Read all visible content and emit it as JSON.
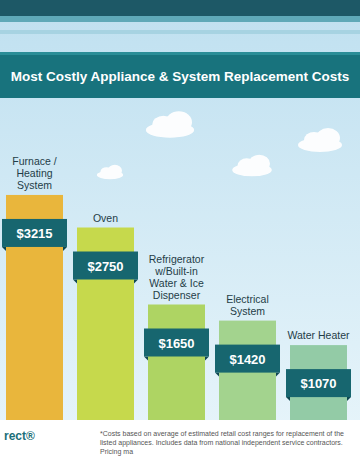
{
  "chart_data": {
    "type": "bar",
    "title": "Most Costly Appliance & System Replacement Costs",
    "categories": [
      "Furnace / Heating System",
      "Oven",
      "Refrigerator w/Built-in Water & Ice Dispenser",
      "Electrical System",
      "Water Heater"
    ],
    "values": [
      3215,
      2750,
      1650,
      1420,
      1070
    ],
    "value_labels": [
      "$3215",
      "$2750",
      "$1650",
      "$1420",
      "$1070"
    ],
    "colors": [
      "#e9b63c",
      "#c6d94c",
      "#aed463",
      "#a3d38e",
      "#93cba6"
    ],
    "ylim": [
      0,
      3400
    ],
    "grid": false,
    "tick_labels": false,
    "data_labels": true,
    "footnote": "*Costs based on average of estimated retail cost ranges for replacement of the listed appliances. Includes data from national independent service contractors. Pricing ma",
    "source": "rect®"
  }
}
